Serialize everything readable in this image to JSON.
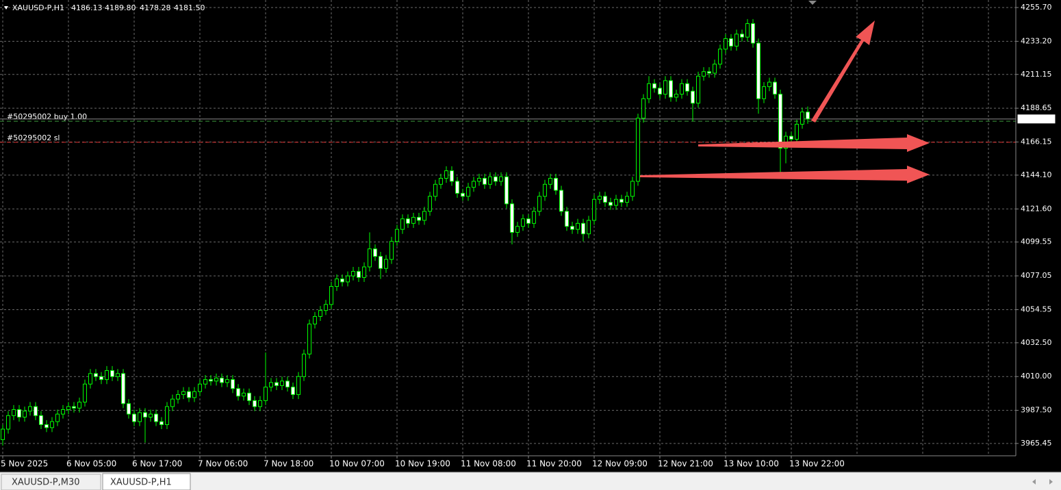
{
  "chart_data": {
    "type": "candlestick",
    "title": "XAUUSD-P,H1",
    "header_values": [
      "4186.13",
      "4189.80",
      "4178.28",
      "4181.50"
    ],
    "categories": [
      "5 Nov 2025",
      null,
      null,
      null,
      null,
      null,
      null,
      null,
      null,
      null,
      null,
      null,
      "6 Nov 05:00",
      null,
      null,
      null,
      null,
      null,
      null,
      null,
      null,
      null,
      null,
      null,
      "6 Nov 17:00",
      null,
      null,
      null,
      null,
      null,
      null,
      null,
      null,
      null,
      null,
      null,
      "7 Nov 06:00",
      null,
      null,
      null,
      null,
      null,
      null,
      null,
      null,
      null,
      null,
      null,
      "7 Nov 18:00",
      null,
      null,
      null,
      null,
      null,
      null,
      null,
      null,
      null,
      null,
      null,
      "10 Nov 07:00",
      null,
      null,
      null,
      null,
      null,
      null,
      null,
      null,
      null,
      null,
      null,
      "10 Nov 19:00",
      null,
      null,
      null,
      null,
      null,
      null,
      null,
      null,
      null,
      null,
      null,
      "11 Nov 08:00",
      null,
      null,
      null,
      null,
      null,
      null,
      null,
      null,
      null,
      null,
      null,
      "11 Nov 20:00",
      null,
      null,
      null,
      null,
      null,
      null,
      null,
      null,
      null,
      null,
      null,
      "12 Nov 09:00",
      null,
      null,
      null,
      null,
      null,
      null,
      null,
      null,
      null,
      null,
      null,
      "12 Nov 21:00",
      null,
      null,
      null,
      null,
      null,
      null,
      null,
      null,
      null,
      null,
      null,
      "13 Nov 10:00",
      null,
      null,
      null,
      null,
      null,
      null,
      null,
      null,
      null,
      null,
      null,
      "13 Nov 22:00",
      null,
      null,
      null
    ],
    "open": [
      3968,
      3975,
      3984,
      3988,
      3983,
      3987,
      3990,
      3984,
      3978,
      3976,
      3980,
      3985,
      3988,
      3990,
      3989,
      3993,
      4005,
      4012,
      4010,
      4008,
      4014,
      4010,
      4012,
      3992,
      3985,
      3980,
      3986,
      3983,
      3985,
      3980,
      3978,
      3990,
      3995,
      3998,
      4000,
      3996,
      4000,
      4005,
      4008,
      4007,
      4009,
      4006,
      4008,
      4002,
      3997,
      3999,
      3994,
      3990,
      3994,
      4003,
      4006,
      4004,
      4007,
      4003,
      3998,
      4010,
      4025,
      4045,
      4050,
      4054,
      4058,
      4070,
      4075,
      4073,
      4077,
      4080,
      4076,
      4083,
      4095,
      4090,
      4082,
      4088,
      4100,
      4108,
      4115,
      4112,
      4116,
      4114,
      4120,
      4130,
      4138,
      4142,
      4147,
      4140,
      4132,
      4130,
      4136,
      4140,
      4142,
      4138,
      4143,
      4140,
      4143,
      4125,
      4106,
      4110,
      4115,
      4112,
      4120,
      4130,
      4138,
      4142,
      4134,
      4120,
      4110,
      4108,
      4112,
      4105,
      4114,
      4128,
      4130,
      4126,
      4124,
      4128,
      4126,
      4130,
      4140,
      4182,
      4195,
      4205,
      4202,
      4198,
      4207,
      4196,
      4198,
      4205,
      4200,
      4192,
      4210,
      4213,
      4212,
      4218,
      4228,
      4235,
      4230,
      4238,
      4236,
      4245,
      4232,
      4195,
      4203,
      4206,
      4198,
      4162,
      4170,
      4168,
      4178,
      4186.13
    ],
    "high": [
      3978,
      3987,
      3991,
      3991,
      3990,
      3993,
      3993,
      3987,
      3981,
      3983,
      3988,
      3991,
      3993,
      3993,
      3996,
      4008,
      4015,
      4015,
      4013,
      4017,
      4017,
      4015,
      4015,
      3995,
      3988,
      3989,
      3989,
      3988,
      3988,
      3983,
      3993,
      3998,
      4001,
      4003,
      4003,
      4003,
      4008,
      4011,
      4011,
      4012,
      4012,
      4011,
      4011,
      4005,
      4002,
      4002,
      3997,
      3997,
      4026,
      4009,
      4009,
      4010,
      4010,
      4006,
      4013,
      4028,
      4048,
      4053,
      4057,
      4061,
      4073,
      4078,
      4078,
      4080,
      4083,
      4083,
      4086,
      4106,
      4098,
      4093,
      4091,
      4103,
      4111,
      4118,
      4118,
      4119,
      4119,
      4123,
      4133,
      4141,
      4145,
      4150,
      4150,
      4143,
      4135,
      4139,
      4143,
      4145,
      4145,
      4146,
      4146,
      4146,
      4146,
      4128,
      4113,
      4118,
      4118,
      4123,
      4133,
      4141,
      4145,
      4145,
      4137,
      4123,
      4113,
      4115,
      4115,
      4117,
      4131,
      4133,
      4133,
      4129,
      4131,
      4131,
      4133,
      4143,
      4185,
      4198,
      4210,
      4208,
      4205,
      4210,
      4210,
      4201,
      4208,
      4208,
      4203,
      4213,
      4216,
      4216,
      4221,
      4231,
      4238,
      4238,
      4241,
      4241,
      4248,
      4248,
      4235,
      4206,
      4209,
      4209,
      4201,
      4173,
      4173,
      4181,
      4189,
      4189.8
    ],
    "low": [
      3964,
      3972,
      3981,
      3980,
      3980,
      3984,
      3981,
      3975,
      3973,
      3973,
      3977,
      3982,
      3985,
      3986,
      3986,
      3990,
      4002,
      4007,
      4005,
      4005,
      4007,
      4007,
      3989,
      3982,
      3977,
      3977,
      3966,
      3980,
      3977,
      3975,
      3975,
      3987,
      3992,
      3995,
      3993,
      3993,
      3997,
      4002,
      4004,
      4004,
      4003,
      4003,
      3999,
      3994,
      3994,
      3991,
      3987,
      3987,
      3991,
      4000,
      4001,
      4001,
      4000,
      3995,
      3995,
      4007,
      4022,
      4042,
      4047,
      4051,
      4055,
      4067,
      4070,
      4070,
      4074,
      4073,
      4073,
      4080,
      4087,
      4075,
      4079,
      4085,
      4097,
      4105,
      4109,
      4109,
      4111,
      4111,
      4117,
      4127,
      4135,
      4139,
      4137,
      4129,
      4127,
      4127,
      4133,
      4137,
      4135,
      4135,
      4137,
      4137,
      4122,
      4098,
      4103,
      4107,
      4109,
      4109,
      4117,
      4127,
      4135,
      4131,
      4117,
      4107,
      4105,
      4105,
      4100,
      4102,
      4111,
      4125,
      4123,
      4121,
      4121,
      4123,
      4123,
      4127,
      4137,
      4179,
      4192,
      4199,
      4195,
      4195,
      4193,
      4193,
      4195,
      4197,
      4180,
      4189,
      4207,
      4209,
      4209,
      4215,
      4225,
      4227,
      4227,
      4233,
      4233,
      4229,
      4185,
      4192,
      4200,
      4195,
      4145,
      4152,
      4165,
      4165,
      4175,
      4178.28
    ],
    "close": [
      3975,
      3984,
      3988,
      3983,
      3987,
      3990,
      3984,
      3978,
      3976,
      3980,
      3985,
      3988,
      3990,
      3989,
      3993,
      4005,
      4012,
      4010,
      4008,
      4014,
      4010,
      4012,
      3992,
      3985,
      3980,
      3986,
      3983,
      3985,
      3980,
      3978,
      3990,
      3995,
      3998,
      4000,
      3996,
      4000,
      4005,
      4008,
      4007,
      4009,
      4006,
      4008,
      4002,
      3997,
      3999,
      3994,
      3990,
      3994,
      4003,
      4006,
      4004,
      4007,
      4003,
      3998,
      4010,
      4025,
      4045,
      4050,
      4054,
      4058,
      4070,
      4075,
      4073,
      4077,
      4080,
      4076,
      4083,
      4095,
      4090,
      4082,
      4088,
      4100,
      4108,
      4115,
      4112,
      4116,
      4114,
      4120,
      4130,
      4138,
      4142,
      4147,
      4140,
      4132,
      4130,
      4136,
      4140,
      4142,
      4138,
      4143,
      4140,
      4143,
      4125,
      4106,
      4110,
      4115,
      4112,
      4120,
      4130,
      4138,
      4142,
      4134,
      4120,
      4110,
      4108,
      4112,
      4105,
      4114,
      4128,
      4130,
      4126,
      4124,
      4128,
      4126,
      4130,
      4140,
      4182,
      4195,
      4205,
      4202,
      4198,
      4207,
      4196,
      4198,
      4205,
      4200,
      4192,
      4210,
      4213,
      4212,
      4218,
      4228,
      4235,
      4230,
      4238,
      4236,
      4245,
      4232,
      4195,
      4203,
      4206,
      4198,
      4162,
      4170,
      4168,
      4178,
      4186.13,
      4181.5
    ],
    "candle_colors": {
      "wick": "#00ff00",
      "up": "#000000",
      "down": "#ffffff"
    },
    "ylim": [
      3957.25,
      4260.7
    ],
    "yticks": [
      {
        "value": 3965.45,
        "label": "3965.45"
      },
      {
        "value": 3987.5,
        "label": "3987.50"
      },
      {
        "value": 4010,
        "label": "4010.00"
      },
      {
        "value": 4032.5,
        "label": "4032.50"
      },
      {
        "value": 4054.55,
        "label": "4054.55"
      },
      {
        "value": 4077.05,
        "label": "4077.05"
      },
      {
        "value": 4099.55,
        "label": "4099.55"
      },
      {
        "value": 4121.6,
        "label": "4121.60"
      },
      {
        "value": 4144.1,
        "label": "4144.10"
      },
      {
        "value": 4166.15,
        "label": "4166.15"
      },
      {
        "value": 4188.65,
        "label": "4188.65"
      },
      {
        "value": 4211.15,
        "label": "4211.15"
      },
      {
        "value": 4233.2,
        "label": "4233.20"
      },
      {
        "value": 4255.7,
        "label": "4255.70"
      }
    ],
    "grid": true,
    "grid_color": "#6b6b6b",
    "bid": {
      "value": 4181.5,
      "label": "4181.50"
    },
    "orders": [
      {
        "label": "#50295002 buy 1.00",
        "price": 4180,
        "color": "#3c9a3c"
      },
      {
        "label": "#50295002 sl",
        "price": 4166,
        "color": "#e03030"
      }
    ],
    "tabs": [
      "XAUUSD-P,M30",
      "XAUUSD-P,H1"
    ]
  }
}
